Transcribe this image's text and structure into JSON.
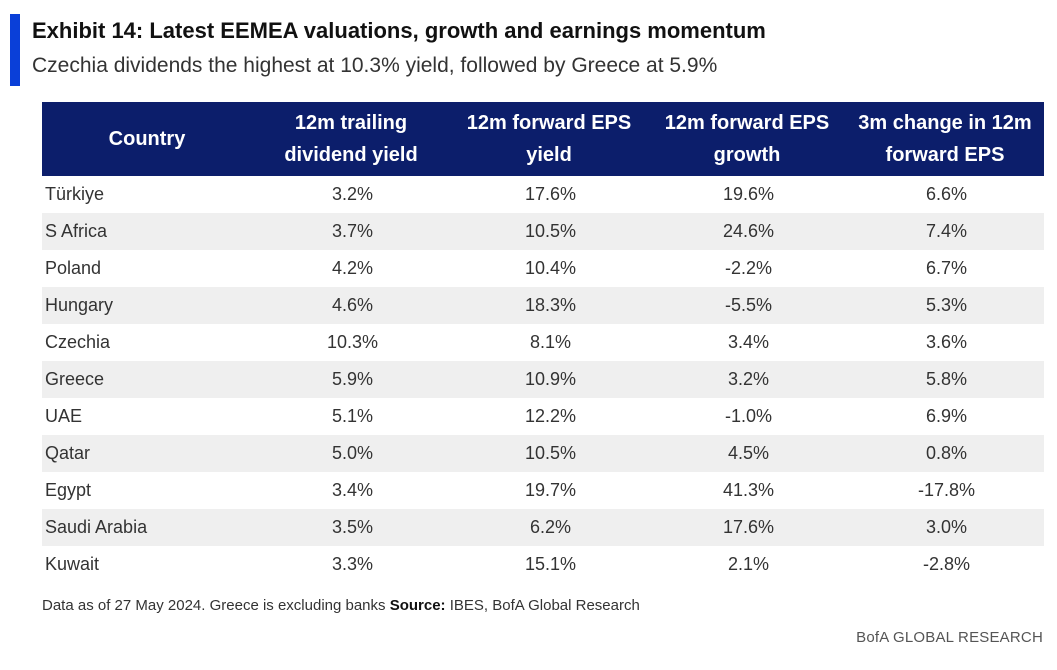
{
  "exhibit": {
    "title": "Exhibit 14: Latest EEMEA valuations, growth and earnings momentum",
    "subtitle": "Czechia dividends the highest at 10.3% yield, followed by Greece at 5.9%",
    "accent_color": "#0a3fd8"
  },
  "table": {
    "header_color": "#0c1e6b",
    "columns": [
      "Country",
      "12m trailing dividend yield",
      "12m forward EPS yield",
      "12m forward EPS growth",
      "3m change in 12m forward EPS"
    ],
    "rows": [
      {
        "country": "Türkiye",
        "div_yield": "3.2%",
        "eps_yield": "17.6%",
        "eps_growth": "19.6%",
        "eps_change_3m": "6.6%"
      },
      {
        "country": "S Africa",
        "div_yield": "3.7%",
        "eps_yield": "10.5%",
        "eps_growth": "24.6%",
        "eps_change_3m": "7.4%"
      },
      {
        "country": "Poland",
        "div_yield": "4.2%",
        "eps_yield": "10.4%",
        "eps_growth": "-2.2%",
        "eps_change_3m": "6.7%"
      },
      {
        "country": "Hungary",
        "div_yield": "4.6%",
        "eps_yield": "18.3%",
        "eps_growth": "-5.5%",
        "eps_change_3m": "5.3%"
      },
      {
        "country": "Czechia",
        "div_yield": "10.3%",
        "eps_yield": "8.1%",
        "eps_growth": "3.4%",
        "eps_change_3m": "3.6%"
      },
      {
        "country": "Greece",
        "div_yield": "5.9%",
        "eps_yield": "10.9%",
        "eps_growth": "3.2%",
        "eps_change_3m": "5.8%"
      },
      {
        "country": "UAE",
        "div_yield": "5.1%",
        "eps_yield": "12.2%",
        "eps_growth": "-1.0%",
        "eps_change_3m": "6.9%"
      },
      {
        "country": "Qatar",
        "div_yield": "5.0%",
        "eps_yield": "10.5%",
        "eps_growth": "4.5%",
        "eps_change_3m": "0.8%"
      },
      {
        "country": "Egypt",
        "div_yield": "3.4%",
        "eps_yield": "19.7%",
        "eps_growth": "41.3%",
        "eps_change_3m": "-17.8%"
      },
      {
        "country": "Saudi Arabia",
        "div_yield": "3.5%",
        "eps_yield": "6.2%",
        "eps_growth": "17.6%",
        "eps_change_3m": "3.0%"
      },
      {
        "country": "Kuwait",
        "div_yield": "3.3%",
        "eps_yield": "15.1%",
        "eps_growth": "2.1%",
        "eps_change_3m": "-2.8%"
      }
    ]
  },
  "footnote": {
    "note": "Data as of 27 May 2024. Greece is excluding banks ",
    "source_label": "Source:",
    "source_text": " IBES, BofA Global Research"
  },
  "branding": "BofA GLOBAL RESEARCH"
}
